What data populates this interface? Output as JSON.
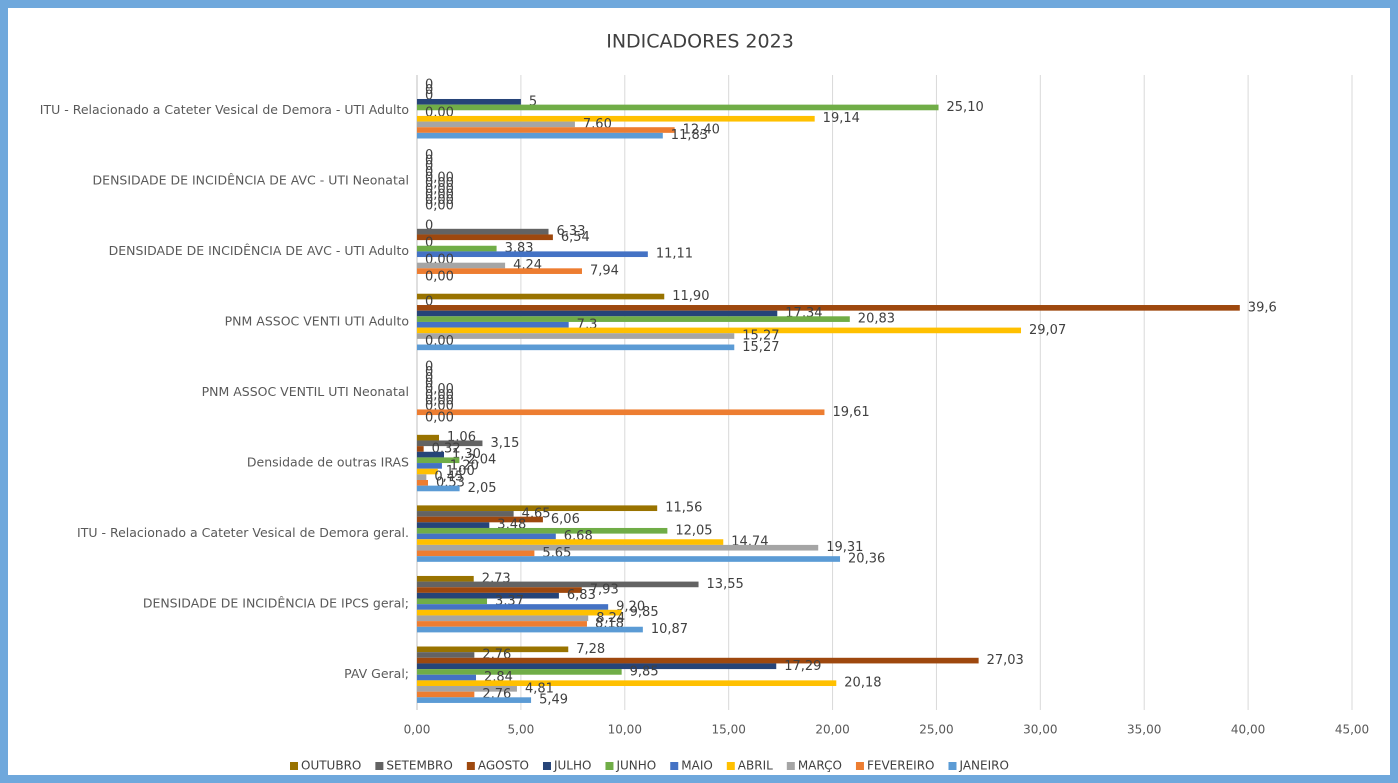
{
  "chart_data": {
    "type": "bar",
    "orientation": "horizontal",
    "title": "INDICADORES 2023",
    "categories": [
      "ITU - Relacionado a Cateter Vesical de Demora - UTI Adulto",
      "DENSIDADE DE INCIDÊNCIA DE AVC - UTI Neonatal",
      "DENSIDADE DE INCIDÊNCIA DE AVC - UTI Adulto",
      "PNM ASSOC VENTI UTI Adulto",
      "PNM ASSOC VENTIL UTI Neonatal",
      "Densidade de outras IRAS",
      "ITU - Relacionado a Cateter Vesical de Demora geral.",
      "DENSIDADE DE INCIDÊNCIA DE IPCS geral;",
      "PAV Geral;"
    ],
    "series": [
      {
        "name": "OUTUBRO",
        "color": "#997300",
        "values": [
          0,
          0,
          0,
          11.9,
          0,
          1.06,
          11.56,
          2.73,
          7.28
        ],
        "value_labels": [
          "0",
          "0",
          "0",
          "11,90",
          "0",
          "1,06",
          "11,56",
          "2,73",
          "7,28"
        ]
      },
      {
        "name": "SETEMBRO",
        "color": "#636363",
        "values": [
          0,
          0,
          6.33,
          0,
          0,
          3.15,
          4.65,
          13.55,
          2.76
        ],
        "value_labels": [
          "0",
          "0",
          "6,33",
          "0",
          "0",
          "3,15",
          "4,65",
          "13,55",
          "2,76"
        ]
      },
      {
        "name": "AGOSTO",
        "color": "#9e480e",
        "values": [
          0,
          0,
          6.54,
          39.6,
          0,
          0.32,
          6.06,
          7.93,
          27.03
        ],
        "value_labels": [
          "0",
          "0",
          "6,54",
          "39,6",
          "0",
          "0,32",
          "6,06",
          "7,93",
          "27,03"
        ]
      },
      {
        "name": "JULHO",
        "color": "#264478",
        "values": [
          5,
          0,
          0,
          17.34,
          0,
          1.3,
          3.48,
          6.83,
          17.29
        ],
        "value_labels": [
          "5",
          "0",
          "0",
          "17,34",
          "0",
          "1,30",
          "3,48",
          "6,83",
          "17,29"
        ]
      },
      {
        "name": "JUNHO",
        "color": "#70ad47",
        "values": [
          25.1,
          0,
          3.83,
          20.83,
          0,
          2.04,
          12.05,
          3.37,
          9.85
        ],
        "value_labels": [
          "25,10",
          "0,00",
          "3,83",
          "20,83",
          "0,00",
          "2,04",
          "12,05",
          "3,37",
          "9,85"
        ]
      },
      {
        "name": "MAIO",
        "color": "#4472c4",
        "values": [
          0,
          0,
          11.11,
          7.3,
          0,
          1.2,
          6.68,
          9.2,
          2.84
        ],
        "value_labels": [
          "0,00",
          "0,00",
          "11,11",
          "7,3",
          "0,00",
          "1,20",
          "6,68",
          "9,20",
          "2,84"
        ]
      },
      {
        "name": "ABRIL",
        "color": "#ffc000",
        "values": [
          19.14,
          0,
          0,
          29.07,
          0,
          1.0,
          14.74,
          9.85,
          20.18
        ],
        "value_labels": [
          "19,14",
          "0,00",
          "0,00",
          "29,07",
          "0,00",
          "1,00",
          "14,74",
          "9,85",
          "20,18"
        ]
      },
      {
        "name": "MARÇO",
        "color": "#a5a5a5",
        "values": [
          7.6,
          0,
          4.24,
          15.27,
          0,
          0.45,
          19.31,
          8.24,
          4.81
        ],
        "value_labels": [
          "7,60",
          "0,00",
          "4,24",
          "15,27",
          "0,00",
          "0,45",
          "19,31",
          "8,24",
          "4,81"
        ]
      },
      {
        "name": "FEVEREIRO",
        "color": "#ed7d31",
        "values": [
          12.4,
          0,
          7.94,
          0,
          19.61,
          0.53,
          5.65,
          8.18,
          2.76
        ],
        "value_labels": [
          "12,40",
          "0,00",
          "7,94",
          "0,00",
          "19,61",
          "0,53",
          "5,65",
          "8,18",
          "2,76"
        ]
      },
      {
        "name": "JANEIRO",
        "color": "#5b9bd5",
        "values": [
          11.83,
          0,
          0,
          15.27,
          0,
          2.05,
          20.36,
          10.87,
          5.49
        ],
        "value_labels": [
          "11,83",
          "0,00",
          "0,00",
          "15,27",
          "0,00",
          "2,05",
          "20,36",
          "10,87",
          "5,49"
        ]
      }
    ],
    "xlim": [
      0,
      45
    ],
    "xticks": [
      {
        "value": 0,
        "label": "0,00"
      },
      {
        "value": 5,
        "label": "5,00"
      },
      {
        "value": 10,
        "label": "10,00"
      },
      {
        "value": 15,
        "label": "15,00"
      },
      {
        "value": 20,
        "label": "20,00"
      },
      {
        "value": 25,
        "label": "25,00"
      },
      {
        "value": 30,
        "label": "30,00"
      },
      {
        "value": 35,
        "label": "35,00"
      },
      {
        "value": 40,
        "label": "40,00"
      },
      {
        "value": 45,
        "label": "45,00"
      }
    ],
    "grid": true,
    "legend": "bottom"
  }
}
